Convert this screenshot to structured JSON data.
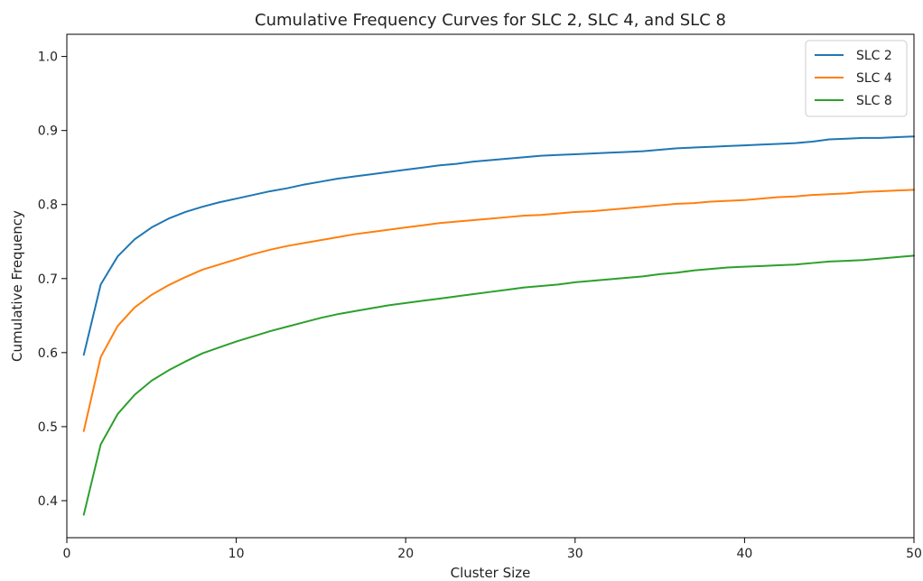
{
  "chart_data": {
    "type": "line",
    "title": "Cumulative Frequency Curves for SLC 2, SLC 4, and SLC 8",
    "xlabel": "Cluster Size",
    "ylabel": "Cumulative Frequency",
    "xlim": [
      0,
      50
    ],
    "ylim": [
      0.35,
      1.03
    ],
    "xticks": [
      0,
      10,
      20,
      30,
      40,
      50
    ],
    "yticks": [
      0.4,
      0.5,
      0.6,
      0.7,
      0.8,
      0.9,
      1.0
    ],
    "xtick_labels": [
      "0",
      "10",
      "20",
      "30",
      "40",
      "50"
    ],
    "ytick_labels": [
      "0.4",
      "0.5",
      "0.6",
      "0.7",
      "0.8",
      "0.9",
      "1.0"
    ],
    "grid": false,
    "legend_position": "top-right",
    "x": [
      1,
      2,
      3,
      4,
      5,
      6,
      7,
      8,
      9,
      10,
      11,
      12,
      13,
      14,
      15,
      16,
      17,
      18,
      19,
      20,
      21,
      22,
      23,
      24,
      25,
      26,
      27,
      28,
      29,
      30,
      31,
      32,
      33,
      34,
      35,
      36,
      37,
      38,
      39,
      40,
      41,
      42,
      43,
      44,
      45,
      46,
      47,
      48,
      49,
      50
    ],
    "series": [
      {
        "name": "SLC 2",
        "color": "#1f77b4",
        "values": [
          0.597,
          0.692,
          0.73,
          0.753,
          0.769,
          0.781,
          0.79,
          0.797,
          0.803,
          0.808,
          0.813,
          0.818,
          0.822,
          0.827,
          0.831,
          0.835,
          0.838,
          0.841,
          0.844,
          0.847,
          0.85,
          0.853,
          0.855,
          0.858,
          0.86,
          0.862,
          0.864,
          0.866,
          0.867,
          0.868,
          0.869,
          0.87,
          0.871,
          0.872,
          0.874,
          0.876,
          0.877,
          0.878,
          0.879,
          0.88,
          0.881,
          0.882,
          0.883,
          0.885,
          0.888,
          0.889,
          0.89,
          0.89,
          0.891,
          0.892
        ]
      },
      {
        "name": "SLC 4",
        "color": "#ff7f0e",
        "values": [
          0.494,
          0.594,
          0.636,
          0.661,
          0.678,
          0.691,
          0.702,
          0.712,
          0.719,
          0.726,
          0.733,
          0.739,
          0.744,
          0.748,
          0.752,
          0.756,
          0.76,
          0.763,
          0.766,
          0.769,
          0.772,
          0.775,
          0.777,
          0.779,
          0.781,
          0.783,
          0.785,
          0.786,
          0.788,
          0.79,
          0.791,
          0.793,
          0.795,
          0.797,
          0.799,
          0.801,
          0.802,
          0.804,
          0.805,
          0.806,
          0.808,
          0.81,
          0.811,
          0.813,
          0.814,
          0.815,
          0.817,
          0.818,
          0.819,
          0.82
        ]
      },
      {
        "name": "SLC 8",
        "color": "#2ca02c",
        "values": [
          0.381,
          0.476,
          0.517,
          0.543,
          0.562,
          0.576,
          0.588,
          0.599,
          0.607,
          0.615,
          0.622,
          0.629,
          0.635,
          0.641,
          0.647,
          0.652,
          0.656,
          0.66,
          0.664,
          0.667,
          0.67,
          0.673,
          0.676,
          0.679,
          0.682,
          0.685,
          0.688,
          0.69,
          0.692,
          0.695,
          0.697,
          0.699,
          0.701,
          0.703,
          0.706,
          0.708,
          0.711,
          0.713,
          0.715,
          0.716,
          0.717,
          0.718,
          0.719,
          0.721,
          0.723,
          0.724,
          0.725,
          0.727,
          0.729,
          0.731
        ]
      }
    ]
  }
}
